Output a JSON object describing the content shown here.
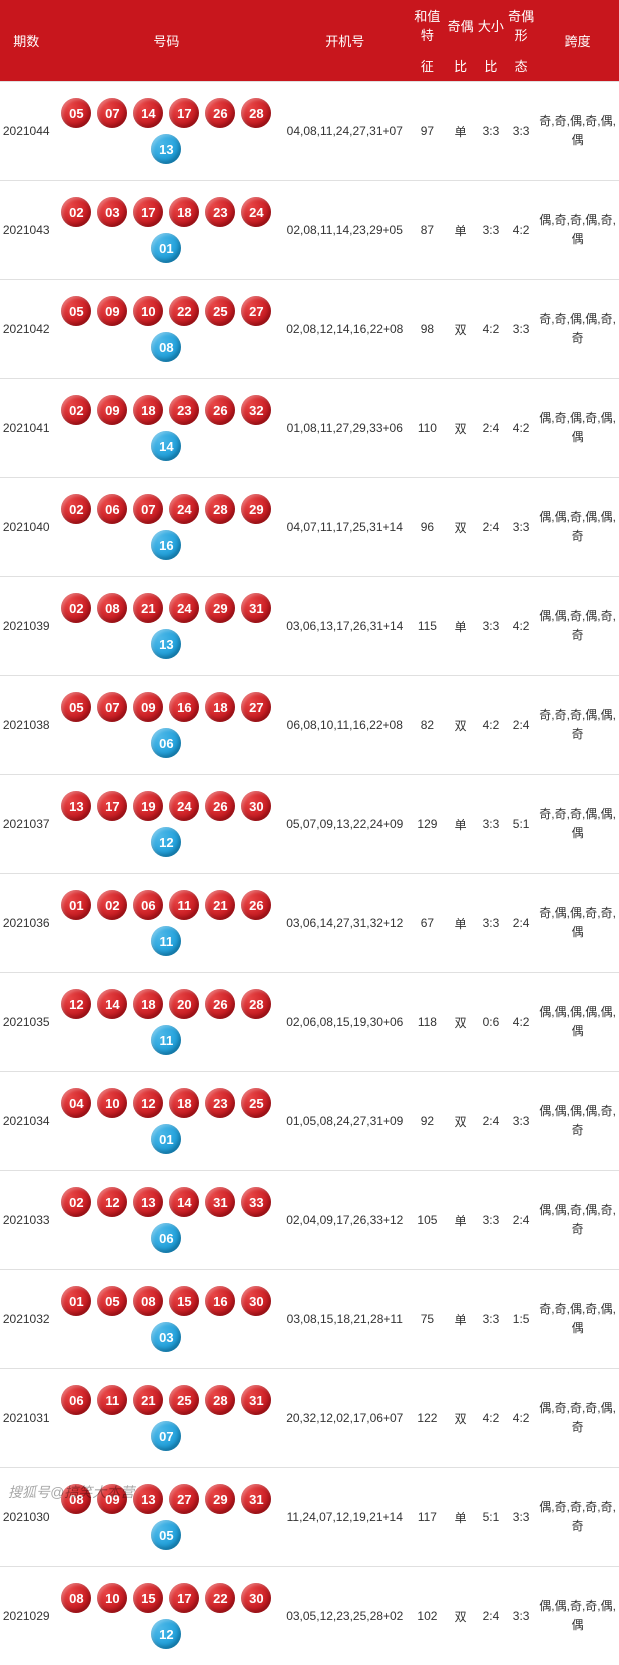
{
  "header": {
    "period": "期数",
    "numbers": "号码",
    "startup": "开机号",
    "sum_feature": "和值特",
    "sum_feature_sub": "征",
    "odd_even": "奇偶",
    "odd_even_sub": "比",
    "big_small": "大小",
    "big_small_sub": "比",
    "odd_even_shape": "奇偶形",
    "odd_even_shape_sub": "态",
    "span": "跨度"
  },
  "columns": {
    "period_w": 52,
    "numbers_w": 226,
    "startup_w": 128,
    "sum_w": 36,
    "oe_w": 30,
    "bs_w": 30,
    "shape_w": 30,
    "span_w": 82
  },
  "colors": {
    "header_bg": "#c8161d",
    "red_ball": "#c6171e",
    "blue_ball": "#1b9dd9",
    "border": "#e0e0e0"
  },
  "watermark": "搜狐号@搞笑大本营",
  "rows": [
    {
      "period": "2021044",
      "red": [
        "05",
        "07",
        "14",
        "17",
        "26",
        "28"
      ],
      "blue": "13",
      "startup": "04,08,11,24,27,31+07",
      "sum": "97",
      "sum_oe": "单",
      "oe": "3:3",
      "bs": "3:3",
      "span": "奇,奇,偶,奇,偶,偶"
    },
    {
      "period": "2021043",
      "red": [
        "02",
        "03",
        "17",
        "18",
        "23",
        "24"
      ],
      "blue": "01",
      "startup": "02,08,11,14,23,29+05",
      "sum": "87",
      "sum_oe": "单",
      "oe": "3:3",
      "bs": "4:2",
      "span": "偶,奇,奇,偶,奇,偶"
    },
    {
      "period": "2021042",
      "red": [
        "05",
        "09",
        "10",
        "22",
        "25",
        "27"
      ],
      "blue": "08",
      "startup": "02,08,12,14,16,22+08",
      "sum": "98",
      "sum_oe": "双",
      "oe": "4:2",
      "bs": "3:3",
      "span": "奇,奇,偶,偶,奇,奇"
    },
    {
      "period": "2021041",
      "red": [
        "02",
        "09",
        "18",
        "23",
        "26",
        "32"
      ],
      "blue": "14",
      "startup": "01,08,11,27,29,33+06",
      "sum": "110",
      "sum_oe": "双",
      "oe": "2:4",
      "bs": "4:2",
      "span": "偶,奇,偶,奇,偶,偶"
    },
    {
      "period": "2021040",
      "red": [
        "02",
        "06",
        "07",
        "24",
        "28",
        "29"
      ],
      "blue": "16",
      "startup": "04,07,11,17,25,31+14",
      "sum": "96",
      "sum_oe": "双",
      "oe": "2:4",
      "bs": "3:3",
      "span": "偶,偶,奇,偶,偶,奇"
    },
    {
      "period": "2021039",
      "red": [
        "02",
        "08",
        "21",
        "24",
        "29",
        "31"
      ],
      "blue": "13",
      "startup": "03,06,13,17,26,31+14",
      "sum": "115",
      "sum_oe": "单",
      "oe": "3:3",
      "bs": "4:2",
      "span": "偶,偶,奇,偶,奇,奇"
    },
    {
      "period": "2021038",
      "red": [
        "05",
        "07",
        "09",
        "16",
        "18",
        "27"
      ],
      "blue": "06",
      "startup": "06,08,10,11,16,22+08",
      "sum": "82",
      "sum_oe": "双",
      "oe": "4:2",
      "bs": "2:4",
      "span": "奇,奇,奇,偶,偶,奇"
    },
    {
      "period": "2021037",
      "red": [
        "13",
        "17",
        "19",
        "24",
        "26",
        "30"
      ],
      "blue": "12",
      "startup": "05,07,09,13,22,24+09",
      "sum": "129",
      "sum_oe": "单",
      "oe": "3:3",
      "bs": "5:1",
      "span": "奇,奇,奇,偶,偶,偶"
    },
    {
      "period": "2021036",
      "red": [
        "01",
        "02",
        "06",
        "11",
        "21",
        "26"
      ],
      "blue": "11",
      "startup": "03,06,14,27,31,32+12",
      "sum": "67",
      "sum_oe": "单",
      "oe": "3:3",
      "bs": "2:4",
      "span": "奇,偶,偶,奇,奇,偶"
    },
    {
      "period": "2021035",
      "red": [
        "12",
        "14",
        "18",
        "20",
        "26",
        "28"
      ],
      "blue": "11",
      "startup": "02,06,08,15,19,30+06",
      "sum": "118",
      "sum_oe": "双",
      "oe": "0:6",
      "bs": "4:2",
      "span": "偶,偶,偶,偶,偶,偶"
    },
    {
      "period": "2021034",
      "red": [
        "04",
        "10",
        "12",
        "18",
        "23",
        "25"
      ],
      "blue": "01",
      "startup": "01,05,08,24,27,31+09",
      "sum": "92",
      "sum_oe": "双",
      "oe": "2:4",
      "bs": "3:3",
      "span": "偶,偶,偶,偶,奇,奇"
    },
    {
      "period": "2021033",
      "red": [
        "02",
        "12",
        "13",
        "14",
        "31",
        "33"
      ],
      "blue": "06",
      "startup": "02,04,09,17,26,33+12",
      "sum": "105",
      "sum_oe": "单",
      "oe": "3:3",
      "bs": "2:4",
      "span": "偶,偶,奇,偶,奇,奇"
    },
    {
      "period": "2021032",
      "red": [
        "01",
        "05",
        "08",
        "15",
        "16",
        "30"
      ],
      "blue": "03",
      "startup": "03,08,15,18,21,28+11",
      "sum": "75",
      "sum_oe": "单",
      "oe": "3:3",
      "bs": "1:5",
      "span": "奇,奇,偶,奇,偶,偶"
    },
    {
      "period": "2021031",
      "red": [
        "06",
        "11",
        "21",
        "25",
        "28",
        "31"
      ],
      "blue": "07",
      "startup": "20,32,12,02,17,06+07",
      "sum": "122",
      "sum_oe": "双",
      "oe": "4:2",
      "bs": "4:2",
      "span": "偶,奇,奇,奇,偶,奇"
    },
    {
      "period": "2021030",
      "red": [
        "08",
        "09",
        "13",
        "27",
        "29",
        "31"
      ],
      "blue": "05",
      "startup": "11,24,07,12,19,21+14",
      "sum": "117",
      "sum_oe": "单",
      "oe": "5:1",
      "bs": "3:3",
      "span": "偶,奇,奇,奇,奇,奇"
    },
    {
      "period": "2021029",
      "red": [
        "08",
        "10",
        "15",
        "17",
        "22",
        "30"
      ],
      "blue": "12",
      "startup": "03,05,12,23,25,28+02",
      "sum": "102",
      "sum_oe": "双",
      "oe": "2:4",
      "bs": "3:3",
      "span": "偶,偶,奇,奇,偶,偶"
    }
  ]
}
